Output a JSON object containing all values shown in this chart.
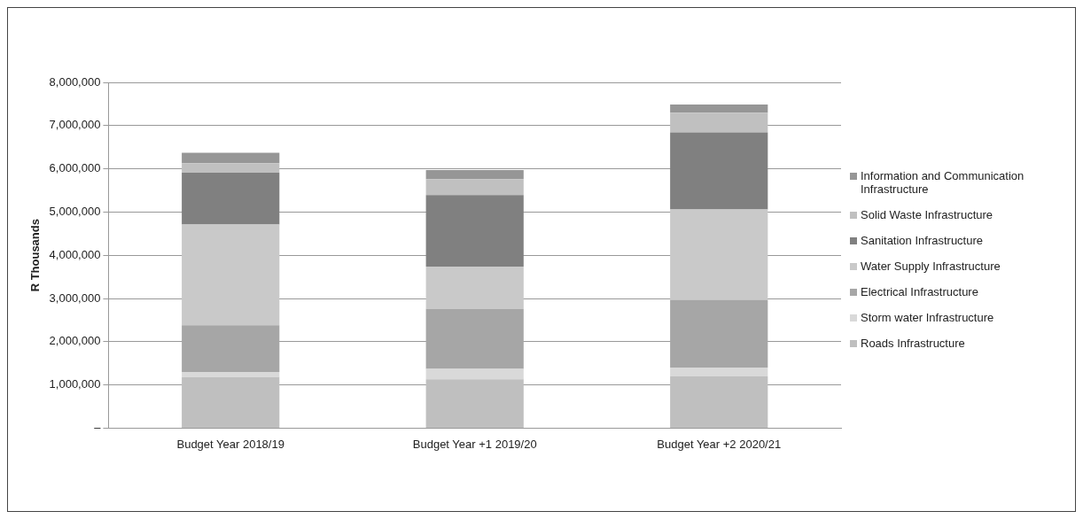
{
  "chart_data": {
    "type": "bar",
    "stacked": true,
    "ylabel": "R Thousands",
    "categories": [
      "Budget Year 2018/19",
      "Budget Year +1 2019/20",
      "Budget Year +2 2020/21"
    ],
    "series": [
      {
        "name": "Roads Infrastructure",
        "color": "#bfbfbf",
        "values": [
          1180000,
          1130000,
          1200000
        ]
      },
      {
        "name": "Storm water Infrastructure",
        "color": "#d9d9d9",
        "values": [
          120000,
          240000,
          200000
        ]
      },
      {
        "name": "Electrical Infrastructure",
        "color": "#a6a6a6",
        "values": [
          1080000,
          1390000,
          1570000
        ]
      },
      {
        "name": "Water Supply Infrastructure",
        "color": "#c9c9c9",
        "values": [
          2330000,
          980000,
          2090000
        ]
      },
      {
        "name": "Sanitation Infrastructure",
        "color": "#808080",
        "values": [
          1200000,
          1650000,
          1780000
        ]
      },
      {
        "name": "Solid Waste Infrastructure",
        "color": "#c0c0c0",
        "values": [
          220000,
          370000,
          460000
        ]
      },
      {
        "name": "Information and Communication Infrastructure",
        "color": "#969696",
        "values": [
          240000,
          210000,
          190000
        ]
      }
    ],
    "ylim": [
      0,
      8000000
    ],
    "yticks": [
      {
        "value": 0,
        "label": "–"
      },
      {
        "value": 1000000,
        "label": "1,000,000"
      },
      {
        "value": 2000000,
        "label": "2,000,000"
      },
      {
        "value": 3000000,
        "label": "3,000,000"
      },
      {
        "value": 4000000,
        "label": "4,000,000"
      },
      {
        "value": 5000000,
        "label": "5,000,000"
      },
      {
        "value": 6000000,
        "label": "6,000,000"
      },
      {
        "value": 7000000,
        "label": "7,000,000"
      },
      {
        "value": 8000000,
        "label": "8,000,000"
      }
    ],
    "grid": "y",
    "legend": "right"
  }
}
